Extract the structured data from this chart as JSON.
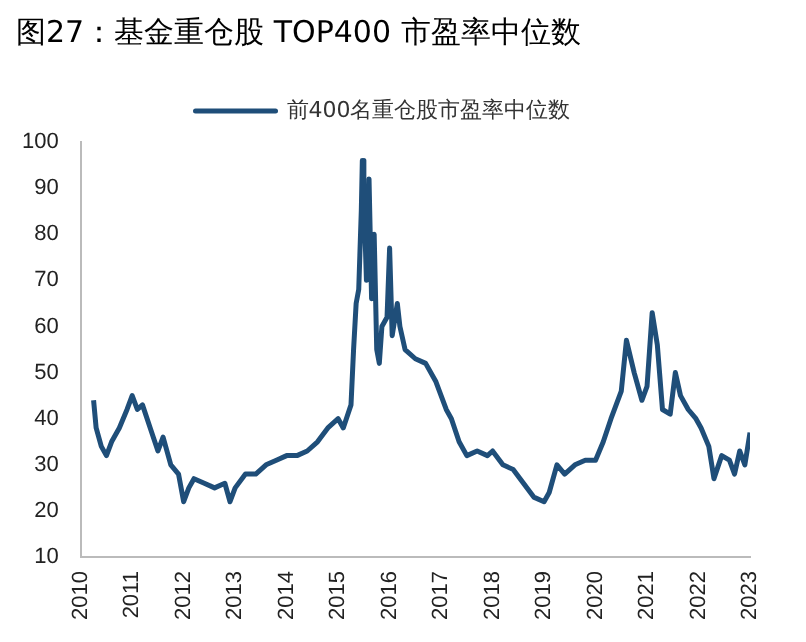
{
  "chart_data": {
    "type": "line",
    "title": "图27：基金重仓股 TOP400 市盈率中位数",
    "x": [
      2010.25,
      2010.3,
      2010.4,
      2010.5,
      2010.6,
      2010.75,
      2010.9,
      2011.0,
      2011.1,
      2011.2,
      2011.35,
      2011.5,
      2011.6,
      2011.75,
      2011.9,
      2012.0,
      2012.1,
      2012.2,
      2012.4,
      2012.6,
      2012.8,
      2012.9,
      2013.0,
      2013.2,
      2013.4,
      2013.6,
      2013.8,
      2014.0,
      2014.2,
      2014.4,
      2014.6,
      2014.8,
      2015.0,
      2015.1,
      2015.25,
      2015.3,
      2015.35,
      2015.4,
      2015.45,
      2015.47,
      2015.5,
      2015.55,
      2015.6,
      2015.65,
      2015.7,
      2015.75,
      2015.8,
      2015.85,
      2015.95,
      2016.0,
      2016.05,
      2016.15,
      2016.2,
      2016.3,
      2016.5,
      2016.7,
      2016.9,
      2017.0,
      2017.1,
      2017.2,
      2017.35,
      2017.5,
      2017.7,
      2017.9,
      2018.0,
      2018.2,
      2018.4,
      2018.6,
      2018.8,
      2019.0,
      2019.1,
      2019.25,
      2019.4,
      2019.6,
      2019.8,
      2020.0,
      2020.15,
      2020.3,
      2020.5,
      2020.6,
      2020.75,
      2020.9,
      2021.0,
      2021.1,
      2021.2,
      2021.3,
      2021.45,
      2021.55,
      2021.65,
      2021.8,
      2021.95,
      2022.05,
      2022.2,
      2022.3,
      2022.45,
      2022.6,
      2022.7,
      2022.8,
      2022.9,
      2023.0
    ],
    "series": [
      {
        "name": "前400名重仓股市盈率中位数",
        "color": "#1f4e79",
        "values": [
          44,
          38,
          34,
          32,
          35,
          38,
          42,
          45,
          42,
          43,
          38,
          33,
          36,
          30,
          28,
          22,
          25,
          27,
          26,
          25,
          26,
          22,
          25,
          28,
          28,
          30,
          31,
          32,
          32,
          33,
          35,
          38,
          40,
          38,
          43,
          55,
          65,
          68,
          85,
          96,
          88,
          70,
          92,
          66,
          80,
          55,
          52,
          60,
          62,
          77,
          58,
          65,
          60,
          55,
          53,
          52,
          48,
          45,
          42,
          40,
          35,
          32,
          33,
          32,
          33,
          30,
          29,
          26,
          23,
          22,
          24,
          30,
          28,
          30,
          31,
          31,
          35,
          40,
          46,
          57,
          50,
          44,
          47,
          63,
          56,
          42,
          41,
          50,
          45,
          42,
          40,
          38,
          34,
          27,
          32,
          31,
          28,
          33,
          30,
          37
        ]
      }
    ],
    "xlim": [
      2010,
      2023
    ],
    "xticks": [
      2010,
      2011,
      2012,
      2013,
      2014,
      2015,
      2016,
      2017,
      2018,
      2019,
      2020,
      2021,
      2022,
      2023
    ],
    "ylim": [
      10,
      100
    ],
    "yticks": [
      10,
      20,
      30,
      40,
      50,
      60,
      70,
      80,
      90,
      100
    ],
    "grid": false,
    "legend": "top",
    "marker": "none",
    "line_style": "solid"
  }
}
